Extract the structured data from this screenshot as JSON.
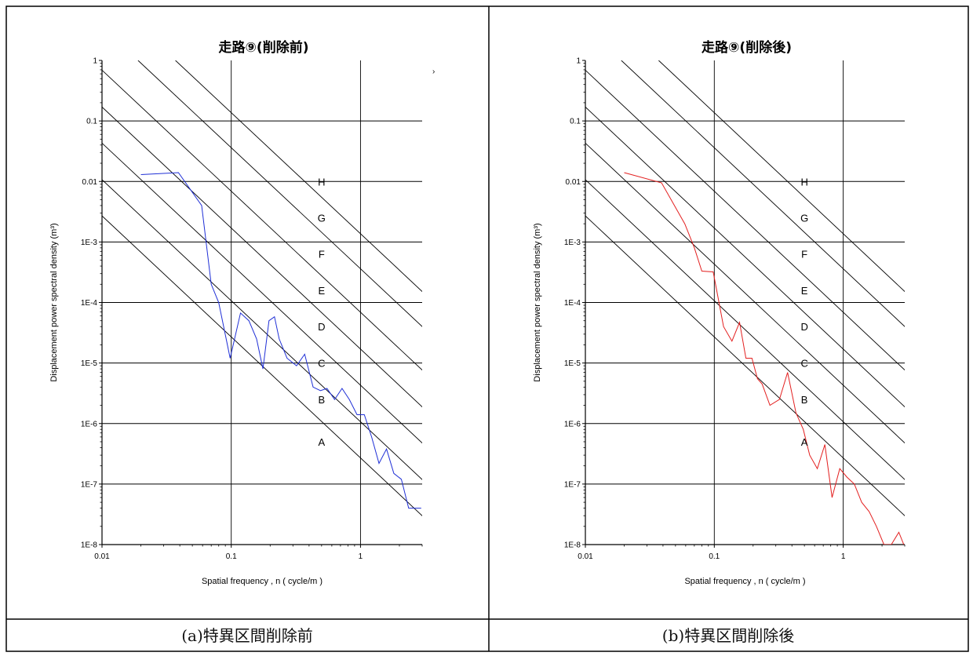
{
  "captions": [
    "(a)特異区間削除前",
    "(b)特異区間削除後"
  ],
  "stray_mark": "›",
  "chart_data": [
    {
      "type": "line",
      "title": "走路⑨(削除前)",
      "xlabel": "Spatial frequency , n ( cycle/m )",
      "ylabel": "Displacement power spectral density (m³)",
      "xscale": "log",
      "yscale": "log",
      "xlim": [
        0.01,
        3
      ],
      "ylim": [
        1e-08,
        1
      ],
      "x_ticks": [
        {
          "v": 0.01,
          "label": "0.01"
        },
        {
          "v": 0.1,
          "label": "0.1"
        },
        {
          "v": 1,
          "label": "1"
        }
      ],
      "y_ticks": [
        {
          "v": 1,
          "label": "1"
        },
        {
          "v": 0.1,
          "label": "0.1"
        },
        {
          "v": 0.01,
          "label": "0.01"
        },
        {
          "v": 0.001,
          "label": "1E-3"
        },
        {
          "v": 0.0001,
          "label": "1E-4"
        },
        {
          "v": 1e-05,
          "label": "1E-5"
        },
        {
          "v": 1e-06,
          "label": "1E-6"
        },
        {
          "v": 1e-07,
          "label": "1E-7"
        },
        {
          "v": 1e-08,
          "label": "1E-8"
        }
      ],
      "grid": true,
      "grade_lines": [
        {
          "n": 0.01,
          "v": 0.0027
        },
        {
          "n": 0.01,
          "v": 0.0107
        },
        {
          "n": 0.01,
          "v": 0.043
        },
        {
          "n": 0.01,
          "v": 0.17
        },
        {
          "n": 0.01,
          "v": 0.69
        },
        {
          "n": 0.019,
          "v": 1.0
        },
        {
          "n": 0.037,
          "v": 1.0
        }
      ],
      "grade_labels": [
        {
          "label": "A",
          "n": 0.5,
          "v": 5e-07
        },
        {
          "label": "B",
          "n": 0.5,
          "v": 2.5e-06
        },
        {
          "label": "C",
          "n": 0.5,
          "v": 1e-05
        },
        {
          "label": "D",
          "n": 0.5,
          "v": 4e-05
        },
        {
          "label": "E",
          "n": 0.5,
          "v": 0.00016
        },
        {
          "label": "F",
          "n": 0.5,
          "v": 0.00064
        },
        {
          "label": "G",
          "n": 0.5,
          "v": 0.0025
        },
        {
          "label": "H",
          "n": 0.5,
          "v": 0.01
        }
      ],
      "series": [
        {
          "color": "#1f2fd6",
          "x": [
            0.02,
            0.039,
            0.059,
            0.07,
            0.08,
            0.098,
            0.118,
            0.137,
            0.157,
            0.176,
            0.196,
            0.216,
            0.235,
            0.27,
            0.32,
            0.37,
            0.43,
            0.49,
            0.55,
            0.63,
            0.72,
            0.82,
            0.94,
            1.07,
            1.22,
            1.39,
            1.59,
            1.81,
            2.07,
            2.36,
            2.7,
            2.95
          ],
          "y": [
            0.013,
            0.014,
            0.004,
            0.0002,
            0.0001,
            1.2e-05,
            6.7e-05,
            5e-05,
            2.5e-05,
            8e-06,
            5e-05,
            5.8e-05,
            2.5e-05,
            1.2e-05,
            9e-06,
            1.4e-05,
            4e-06,
            3.5e-06,
            3.8e-06,
            2.5e-06,
            3.8e-06,
            2.5e-06,
            1.4e-06,
            1.4e-06,
            6e-07,
            2.2e-07,
            3.8e-07,
            1.5e-07,
            1.2e-07,
            4e-08,
            4e-08,
            4e-08
          ]
        }
      ]
    },
    {
      "type": "line",
      "title": "走路⑨(削除後)",
      "xlabel": "Spatial frequency , n ( cycle/m )",
      "ylabel": "Displacement power spectral density (m³)",
      "xscale": "log",
      "yscale": "log",
      "xlim": [
        0.01,
        3
      ],
      "ylim": [
        1e-08,
        1
      ],
      "x_ticks": [
        {
          "v": 0.01,
          "label": "0.01"
        },
        {
          "v": 0.1,
          "label": "0.1"
        },
        {
          "v": 1,
          "label": "1"
        }
      ],
      "y_ticks": [
        {
          "v": 1,
          "label": "1"
        },
        {
          "v": 0.1,
          "label": "0.1"
        },
        {
          "v": 0.01,
          "label": "0.01"
        },
        {
          "v": 0.001,
          "label": "1E-3"
        },
        {
          "v": 0.0001,
          "label": "1E-4"
        },
        {
          "v": 1e-05,
          "label": "1E-5"
        },
        {
          "v": 1e-06,
          "label": "1E-6"
        },
        {
          "v": 1e-07,
          "label": "1E-7"
        },
        {
          "v": 1e-08,
          "label": "1E-8"
        }
      ],
      "grid": true,
      "grade_lines": [
        {
          "n": 0.01,
          "v": 0.0027
        },
        {
          "n": 0.01,
          "v": 0.0107
        },
        {
          "n": 0.01,
          "v": 0.043
        },
        {
          "n": 0.01,
          "v": 0.17
        },
        {
          "n": 0.01,
          "v": 0.69
        },
        {
          "n": 0.019,
          "v": 1.0
        },
        {
          "n": 0.037,
          "v": 1.0
        }
      ],
      "grade_labels": [
        {
          "label": "A",
          "n": 0.5,
          "v": 5e-07
        },
        {
          "label": "B",
          "n": 0.5,
          "v": 2.5e-06
        },
        {
          "label": "C",
          "n": 0.5,
          "v": 1e-05
        },
        {
          "label": "D",
          "n": 0.5,
          "v": 4e-05
        },
        {
          "label": "E",
          "n": 0.5,
          "v": 0.00016
        },
        {
          "label": "F",
          "n": 0.5,
          "v": 0.00064
        },
        {
          "label": "G",
          "n": 0.5,
          "v": 0.0025
        },
        {
          "label": "H",
          "n": 0.5,
          "v": 0.01
        }
      ],
      "series": [
        {
          "color": "#e32020",
          "x": [
            0.02,
            0.039,
            0.059,
            0.07,
            0.08,
            0.098,
            0.118,
            0.137,
            0.157,
            0.176,
            0.196,
            0.216,
            0.235,
            0.27,
            0.32,
            0.37,
            0.43,
            0.49,
            0.55,
            0.63,
            0.72,
            0.82,
            0.94,
            1.07,
            1.22,
            1.39,
            1.59,
            1.81,
            2.07,
            2.36,
            2.7,
            2.95
          ],
          "y": [
            0.014,
            0.0095,
            0.002,
            0.0008,
            0.00033,
            0.00032,
            4e-05,
            2.3e-05,
            4.7e-05,
            1.2e-05,
            1.2e-05,
            5.5e-06,
            4.5e-06,
            2e-06,
            2.5e-06,
            7e-06,
            1.5e-06,
            8e-07,
            3e-07,
            1.8e-07,
            4.5e-07,
            6e-08,
            1.8e-07,
            1.3e-07,
            1e-07,
            5e-08,
            3.5e-08,
            2e-08,
            1e-08,
            1e-08,
            1.6e-08,
            1e-08
          ]
        }
      ]
    }
  ]
}
